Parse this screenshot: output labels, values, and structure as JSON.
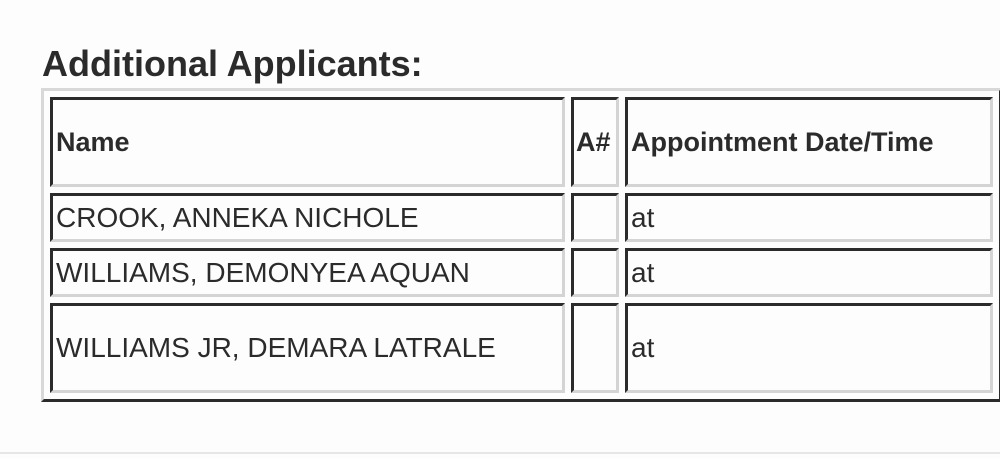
{
  "title": "Additional Applicants:",
  "table": {
    "headers": [
      "Name",
      "A#",
      "Appointment Date/Time"
    ],
    "rows": [
      {
        "name": "CROOK, ANNEKA NICHOLE",
        "a_number": "",
        "appointment": "at"
      },
      {
        "name": "WILLIAMS, DEMONYEA AQUAN",
        "a_number": "",
        "appointment": "at"
      },
      {
        "name": "WILLIAMS JR, DEMARA LATRALE",
        "a_number": "",
        "appointment": "at"
      }
    ]
  }
}
